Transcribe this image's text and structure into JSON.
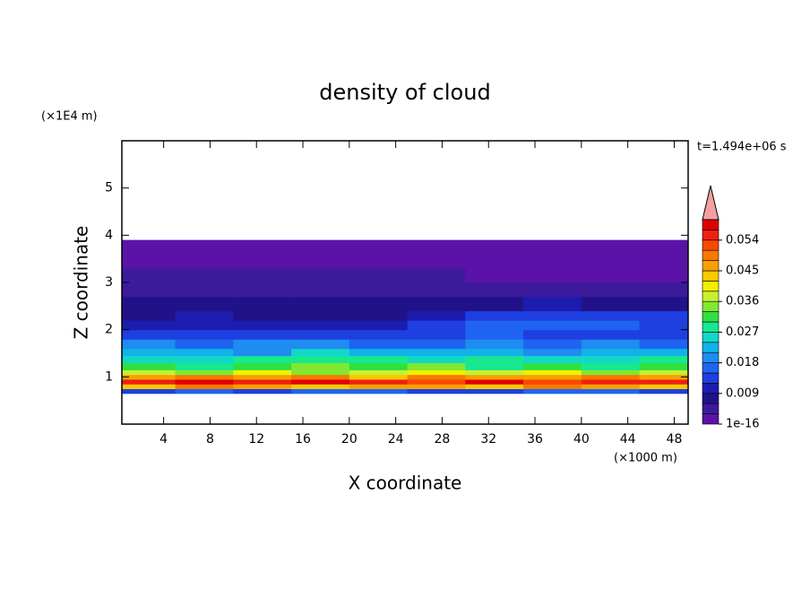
{
  "chart_data": {
    "type": "contour",
    "title": "density of cloud",
    "x_label": "X coordinate",
    "x_unit": "(×1000 m)",
    "y_label": "Z coordinate",
    "y_unit": "(×1E4 m)",
    "time_label": "t=1.494e+06 s",
    "xlim": [
      0.4,
      49.2
    ],
    "ylim": [
      0,
      6
    ],
    "xticks": [
      4,
      8,
      12,
      16,
      20,
      24,
      28,
      32,
      36,
      40,
      44,
      48
    ],
    "yticks": [
      1,
      2,
      3,
      4,
      5
    ],
    "x_edges": [
      0.4,
      5,
      10,
      15,
      20,
      25,
      30,
      35,
      40,
      45,
      49.2
    ],
    "z_edges": [
      0.65,
      0.75,
      0.85,
      0.95,
      1.05,
      1.15,
      1.3,
      1.45,
      1.6,
      1.8,
      2.0,
      2.2,
      2.4,
      2.7,
      3.0,
      3.3,
      3.6,
      3.9
    ],
    "values": [
      [
        0.014,
        0.016,
        0.013,
        0.015,
        0.017,
        0.014,
        0.012,
        0.016,
        0.015,
        0.013
      ],
      [
        0.044,
        0.048,
        0.046,
        0.042,
        0.047,
        0.045,
        0.043,
        0.049,
        0.046,
        0.044
      ],
      [
        0.056,
        0.058,
        0.054,
        0.059,
        0.055,
        0.053,
        0.057,
        0.052,
        0.055,
        0.054
      ],
      [
        0.047,
        0.05,
        0.046,
        0.049,
        0.044,
        0.048,
        0.045,
        0.047,
        0.05,
        0.046
      ],
      [
        0.037,
        0.034,
        0.039,
        0.035,
        0.038,
        0.041,
        0.036,
        0.04,
        0.035,
        0.037
      ],
      [
        0.031,
        0.029,
        0.032,
        0.034,
        0.03,
        0.033,
        0.028,
        0.031,
        0.029,
        0.03
      ],
      [
        0.026,
        0.024,
        0.028,
        0.027,
        0.029,
        0.025,
        0.027,
        0.024,
        0.026,
        0.028
      ],
      [
        0.021,
        0.023,
        0.02,
        0.024,
        0.022,
        0.021,
        0.023,
        0.02,
        0.022,
        0.021
      ],
      [
        0.018,
        0.017,
        0.019,
        0.018,
        0.016,
        0.017,
        0.018,
        0.016,
        0.019,
        0.017
      ],
      [
        0.013,
        0.014,
        0.012,
        0.013,
        0.014,
        0.012,
        0.015,
        0.014,
        0.013,
        0.014
      ],
      [
        0.011,
        0.01,
        0.011,
        0.01,
        0.011,
        0.013,
        0.015,
        0.016,
        0.015,
        0.013
      ],
      [
        0.008,
        0.009,
        0.008,
        0.007,
        0.008,
        0.009,
        0.013,
        0.014,
        0.013,
        0.012
      ],
      [
        0.007,
        0.006,
        0.007,
        0.006,
        0.007,
        0.006,
        0.008,
        0.009,
        0.008,
        0.007
      ],
      [
        0.005,
        0.004,
        0.005,
        0.004,
        0.005,
        0.004,
        0.004,
        0.004,
        0.005,
        0.004
      ],
      [
        0.004,
        0.003,
        0.004,
        0.003,
        0.003,
        0.004,
        0.002,
        0.002,
        0.002,
        0.002
      ],
      [
        0.002,
        0.001,
        0.002,
        0.001,
        0.001,
        0.002,
        0.001,
        0.001,
        0.001,
        0.002
      ],
      [
        0.0008,
        0.0006,
        0.0005,
        0.0003,
        0.0004,
        0.0006,
        0.0009,
        0.0007,
        0.0005,
        0.0008
      ]
    ],
    "colorbar": {
      "levels": [
        1e-16,
        0.003,
        0.006,
        0.009,
        0.012,
        0.015,
        0.018,
        0.021,
        0.024,
        0.027,
        0.03,
        0.033,
        0.036,
        0.039,
        0.042,
        0.045,
        0.048,
        0.051,
        0.054,
        0.057,
        0.06
      ],
      "colors": [
        "#5b12a8",
        "#3c1a9c",
        "#22128a",
        "#1c1cb0",
        "#1f3fe0",
        "#1e64f0",
        "#1e8cf0",
        "#10b4e8",
        "#12d8c8",
        "#18e890",
        "#30e040",
        "#80e830",
        "#c8f030",
        "#f0f000",
        "#f8c800",
        "#f8a000",
        "#f87800",
        "#f84800",
        "#f02010",
        "#e00000"
      ],
      "extend_color": "#f4a0a0",
      "ticks": [
        {
          "value": 1e-16,
          "label": "1e-16"
        },
        0.009,
        0.018,
        0.027,
        0.036,
        0.045,
        0.054
      ]
    }
  }
}
